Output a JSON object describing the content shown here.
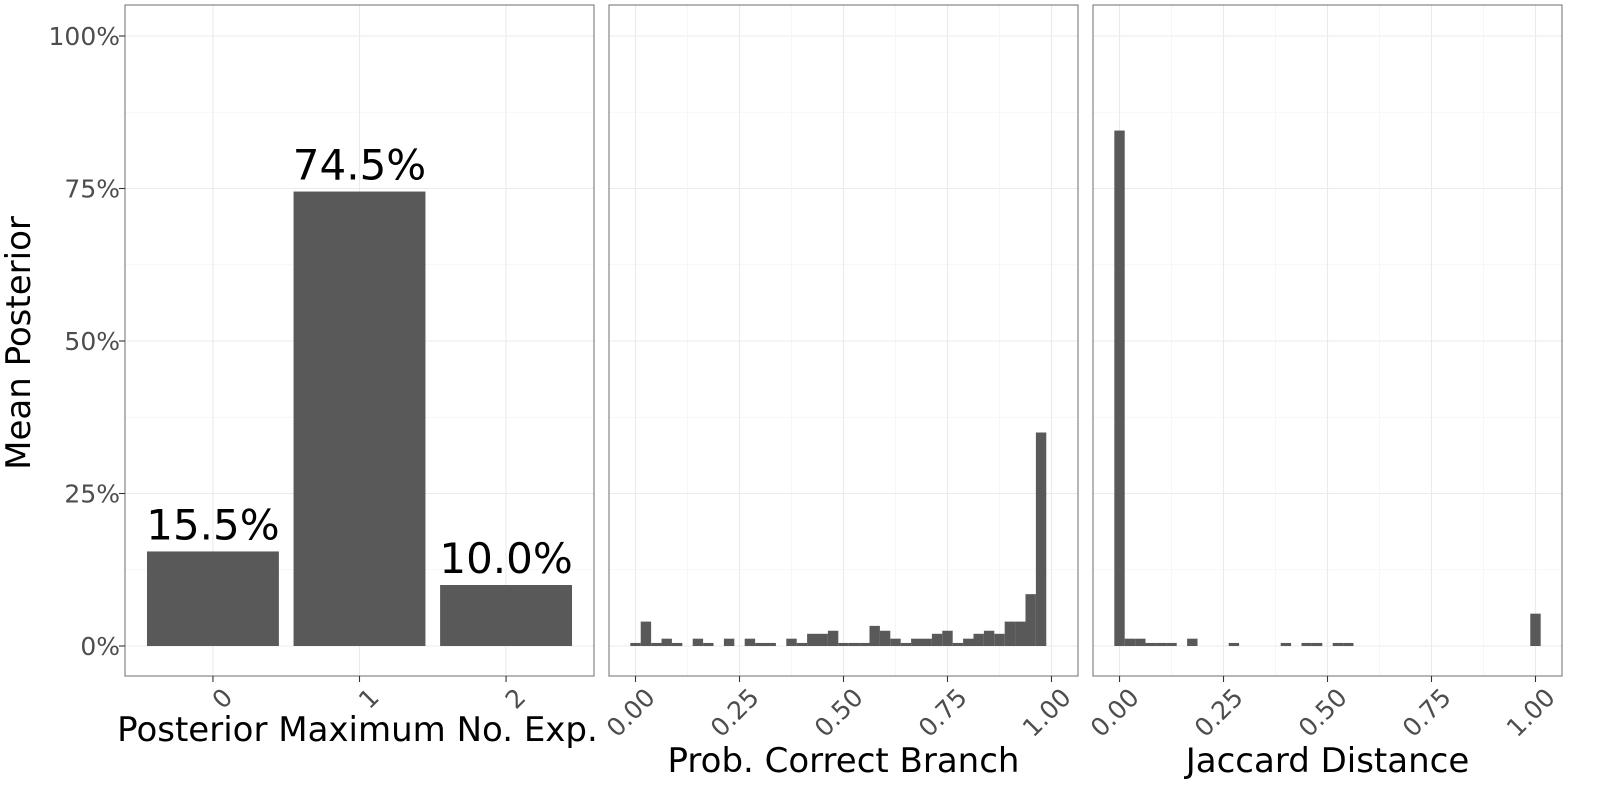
{
  "chart_data": [
    {
      "type": "bar",
      "categories": [
        "0",
        "1",
        "2"
      ],
      "values": [
        15.5,
        74.5,
        10.0
      ],
      "data_labels": [
        "15.5%",
        "74.5%",
        "10.0%"
      ],
      "xlabel": "Posterior Maximum No. Exp.",
      "ylabel": "Mean Posterior",
      "ylim": [
        0,
        100
      ],
      "y_ticks": [
        "0%",
        "25%",
        "50%",
        "75%",
        "100%"
      ],
      "grid": true,
      "color": "#595959"
    },
    {
      "type": "bar",
      "subtype": "histogram",
      "xlabel": "Prob. Correct Branch",
      "xlim": [
        0,
        1
      ],
      "ylim": [
        0,
        100
      ],
      "x_ticks": [
        "0.00",
        "0.25",
        "0.50",
        "0.75",
        "1.00"
      ],
      "grid": true,
      "color": "#595959",
      "bin_width": 0.025,
      "bin_centers": [
        0.0,
        0.025,
        0.05,
        0.075,
        0.1,
        0.125,
        0.15,
        0.175,
        0.2,
        0.225,
        0.25,
        0.275,
        0.3,
        0.325,
        0.35,
        0.375,
        0.4,
        0.425,
        0.45,
        0.475,
        0.5,
        0.525,
        0.55,
        0.575,
        0.6,
        0.625,
        0.65,
        0.675,
        0.7,
        0.725,
        0.75,
        0.775,
        0.8,
        0.825,
        0.85,
        0.875,
        0.9,
        0.925,
        0.95,
        0.975,
        1.0
      ],
      "values": [
        0.5,
        4.0,
        0.5,
        1.2,
        0.5,
        0,
        1.2,
        0.5,
        0,
        1.2,
        0,
        1.2,
        0.5,
        0.5,
        0,
        1.2,
        0.5,
        2.0,
        2.0,
        2.5,
        0.5,
        0.5,
        0.5,
        3.3,
        2.5,
        1.2,
        0.5,
        1.2,
        1.2,
        2.0,
        2.5,
        0.5,
        1.2,
        2.0,
        2.5,
        2.0,
        4.0,
        4.0,
        8.5,
        35.0,
        0
      ]
    },
    {
      "type": "bar",
      "subtype": "histogram",
      "xlabel": "Jaccard Distance",
      "xlim": [
        0,
        1
      ],
      "ylim": [
        0,
        100
      ],
      "x_ticks": [
        "0.00",
        "0.25",
        "0.50",
        "0.75",
        "1.00"
      ],
      "grid": true,
      "color": "#595959",
      "bin_width": 0.025,
      "bin_centers": [
        0.0,
        0.025,
        0.05,
        0.075,
        0.1,
        0.125,
        0.15,
        0.175,
        0.2,
        0.225,
        0.25,
        0.275,
        0.3,
        0.325,
        0.35,
        0.375,
        0.4,
        0.425,
        0.45,
        0.475,
        0.5,
        0.525,
        0.55,
        0.575,
        0.6,
        0.625,
        0.65,
        0.675,
        0.7,
        0.725,
        0.75,
        0.775,
        0.8,
        0.825,
        0.85,
        0.875,
        0.9,
        0.925,
        0.95,
        0.975,
        1.0
      ],
      "values": [
        84.5,
        1.2,
        1.2,
        0.5,
        0.5,
        0.5,
        0,
        1.2,
        0,
        0,
        0,
        0.5,
        0,
        0,
        0,
        0,
        0.5,
        0,
        0.5,
        0.5,
        0,
        0.5,
        0.5,
        0,
        0,
        0,
        0,
        0,
        0,
        0,
        0,
        0,
        0,
        0,
        0,
        0,
        0,
        0,
        0,
        0,
        5.3
      ]
    }
  ]
}
